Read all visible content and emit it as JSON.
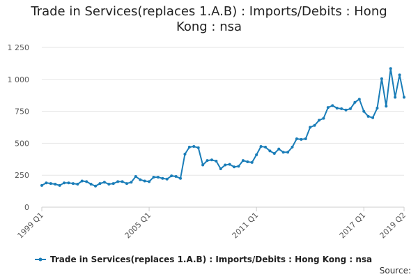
{
  "chart_data": {
    "type": "line",
    "title": "Trade in Services(replaces 1.A.B) : Imports/Debits : Hong Kong : nsa",
    "categories": [
      "1999 Q1",
      null,
      null,
      null,
      null,
      null,
      null,
      null,
      null,
      null,
      null,
      null,
      null,
      null,
      null,
      null,
      null,
      null,
      null,
      null,
      null,
      null,
      null,
      null,
      "2005 Q1",
      null,
      null,
      null,
      null,
      null,
      null,
      null,
      null,
      null,
      null,
      null,
      null,
      null,
      null,
      null,
      null,
      null,
      null,
      null,
      null,
      null,
      null,
      null,
      "2011 Q1",
      null,
      null,
      null,
      null,
      null,
      null,
      null,
      null,
      null,
      null,
      null,
      null,
      null,
      null,
      null,
      null,
      null,
      null,
      null,
      null,
      null,
      null,
      null,
      "2017 Q1",
      null,
      null,
      null,
      null,
      null,
      null,
      null,
      null,
      "2019 Q2"
    ],
    "series": [
      {
        "name": "Trade in Services(replaces 1.A.B) : Imports/Debits : Hong Kong : nsa",
        "color": "#1a7db8",
        "values": [
          170,
          190,
          185,
          180,
          170,
          190,
          190,
          185,
          180,
          205,
          200,
          180,
          165,
          185,
          195,
          180,
          185,
          200,
          200,
          185,
          195,
          240,
          215,
          205,
          200,
          235,
          235,
          225,
          220,
          245,
          240,
          225,
          415,
          470,
          475,
          465,
          330,
          365,
          370,
          360,
          300,
          330,
          335,
          315,
          320,
          365,
          355,
          350,
          410,
          475,
          470,
          440,
          420,
          455,
          430,
          430,
          470,
          535,
          530,
          535,
          625,
          640,
          680,
          695,
          780,
          795,
          775,
          770,
          760,
          770,
          820,
          845,
          750,
          710,
          700,
          775,
          1005,
          790,
          1085,
          860,
          1035,
          860
        ]
      }
    ],
    "ylim": [
      0,
      1250
    ],
    "yticks": [
      0,
      250,
      500,
      750,
      {
        "value": 1000,
        "label": "1 000"
      },
      {
        "value": 1250,
        "label": "1 250"
      }
    ],
    "grid": true,
    "legend": "bottom",
    "source": "Source:"
  }
}
